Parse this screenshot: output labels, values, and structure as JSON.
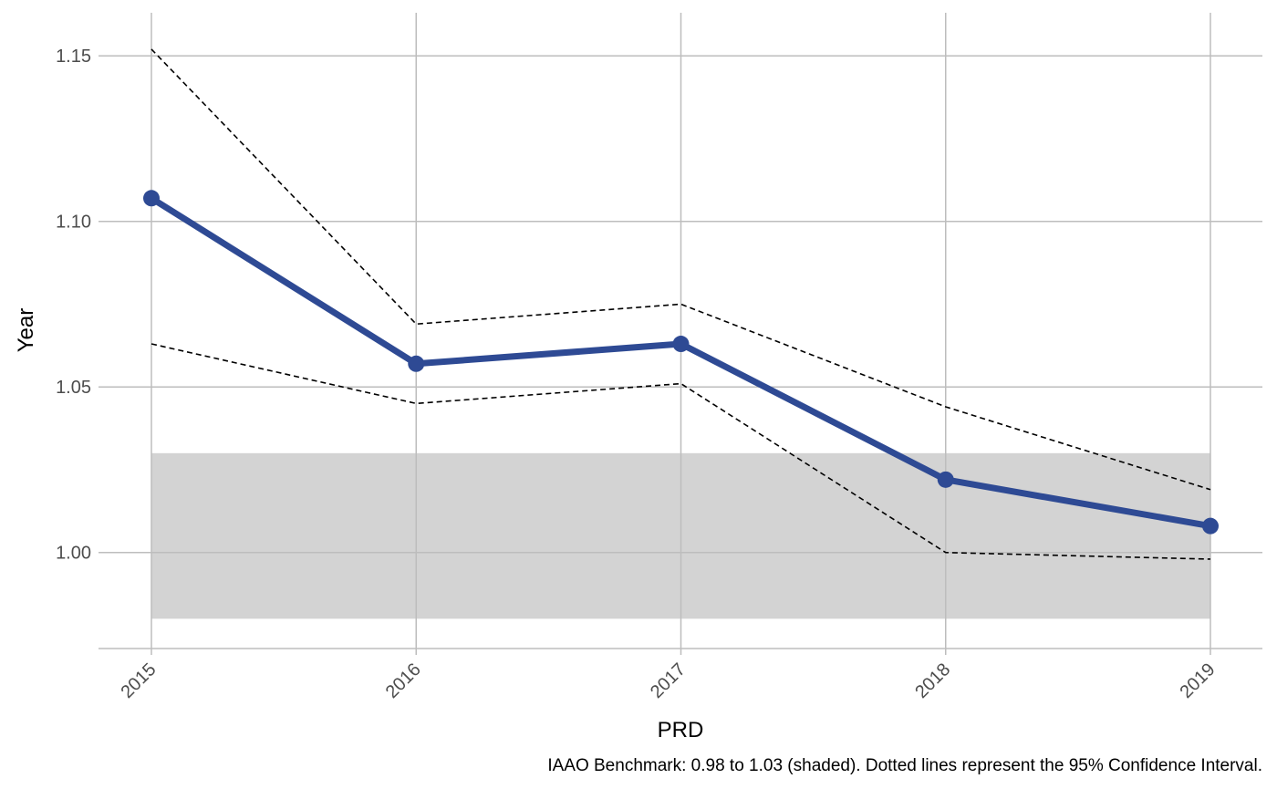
{
  "chart_data": {
    "type": "line",
    "xlabel": "PRD",
    "ylabel": "Year",
    "caption": "IAAO Benchmark: 0.98 to 1.03 (shaded). Dotted lines represent the 95% Confidence Interval.",
    "x": [
      "2015",
      "2016",
      "2017",
      "2018",
      "2019"
    ],
    "y_ticks": [
      "1.00",
      "1.05",
      "1.10",
      "1.15"
    ],
    "ylim": [
      0.971,
      1.163
    ],
    "grid": true,
    "series": [
      {
        "values": [
          1.107,
          1.057,
          1.063,
          1.022,
          1.008
        ],
        "style": "solid-with-points",
        "color": "#2e4a94"
      },
      {
        "values": [
          1.152,
          1.069,
          1.075,
          1.044,
          1.019
        ],
        "style": "dashed",
        "color": "#000000"
      },
      {
        "values": [
          1.063,
          1.045,
          1.051,
          1.0,
          0.998
        ],
        "style": "dashed",
        "color": "#000000"
      }
    ],
    "benchmark_band": {
      "low": 0.98,
      "high": 1.03,
      "color": "#d3d3d3"
    }
  }
}
